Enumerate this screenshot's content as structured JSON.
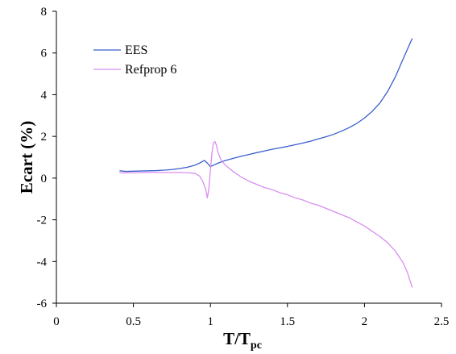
{
  "chart_data": {
    "type": "line",
    "title": "",
    "xlabel": {
      "main": "T/T",
      "sub": "pc"
    },
    "ylabel": "Ecart (%)",
    "xlim": [
      0,
      2.5
    ],
    "ylim": [
      -6,
      8
    ],
    "xticks": [
      0,
      0.5,
      1,
      1.5,
      2,
      2.5
    ],
    "yticks": [
      -6,
      -4,
      -2,
      0,
      2,
      4,
      6,
      8
    ],
    "xtick_labels": [
      "0",
      "0.5",
      "1",
      "1.5",
      "2",
      "2.5"
    ],
    "ytick_labels": [
      "-6",
      "-4",
      "-2",
      "0",
      "2",
      "4",
      "6",
      "8"
    ],
    "grid": false,
    "legend": "top-left",
    "series": [
      {
        "name": "EES",
        "color": "#3a5fcd",
        "x": [
          0.41,
          0.45,
          0.5,
          0.55,
          0.6,
          0.65,
          0.7,
          0.75,
          0.8,
          0.85,
          0.9,
          0.93,
          0.96,
          0.98,
          1.0,
          1.02,
          1.05,
          1.08,
          1.1,
          1.15,
          1.2,
          1.25,
          1.3,
          1.35,
          1.4,
          1.45,
          1.5,
          1.55,
          1.6,
          1.65,
          1.7,
          1.75,
          1.8,
          1.85,
          1.9,
          1.95,
          2.0,
          2.05,
          2.1,
          2.15,
          2.2,
          2.25,
          2.28,
          2.31
        ],
        "y": [
          0.35,
          0.32,
          0.33,
          0.34,
          0.35,
          0.36,
          0.38,
          0.41,
          0.46,
          0.52,
          0.62,
          0.72,
          0.85,
          0.72,
          0.55,
          0.62,
          0.72,
          0.8,
          0.85,
          0.95,
          1.05,
          1.13,
          1.22,
          1.3,
          1.38,
          1.45,
          1.52,
          1.6,
          1.68,
          1.77,
          1.88,
          1.98,
          2.1,
          2.25,
          2.42,
          2.62,
          2.88,
          3.2,
          3.6,
          4.15,
          4.85,
          5.7,
          6.2,
          6.7
        ]
      },
      {
        "name": "Refprop 6",
        "color": "#d88ef0",
        "x": [
          0.41,
          0.45,
          0.5,
          0.55,
          0.6,
          0.65,
          0.7,
          0.75,
          0.8,
          0.85,
          0.9,
          0.93,
          0.95,
          0.97,
          0.98,
          0.99,
          1.0,
          1.01,
          1.02,
          1.03,
          1.04,
          1.05,
          1.07,
          1.1,
          1.15,
          1.2,
          1.25,
          1.3,
          1.35,
          1.4,
          1.45,
          1.5,
          1.55,
          1.6,
          1.65,
          1.7,
          1.75,
          1.8,
          1.85,
          1.9,
          1.95,
          2.0,
          2.05,
          2.1,
          2.15,
          2.2,
          2.25,
          2.28,
          2.31
        ],
        "y": [
          0.25,
          0.25,
          0.26,
          0.26,
          0.27,
          0.27,
          0.27,
          0.27,
          0.27,
          0.26,
          0.22,
          0.1,
          -0.15,
          -0.55,
          -0.95,
          -0.5,
          0.4,
          1.2,
          1.7,
          1.75,
          1.55,
          1.2,
          0.85,
          0.6,
          0.3,
          0.05,
          -0.15,
          -0.3,
          -0.45,
          -0.55,
          -0.7,
          -0.8,
          -0.95,
          -1.05,
          -1.2,
          -1.3,
          -1.45,
          -1.6,
          -1.75,
          -1.9,
          -2.1,
          -2.3,
          -2.55,
          -2.8,
          -3.1,
          -3.5,
          -4.05,
          -4.55,
          -5.25
        ]
      }
    ]
  }
}
